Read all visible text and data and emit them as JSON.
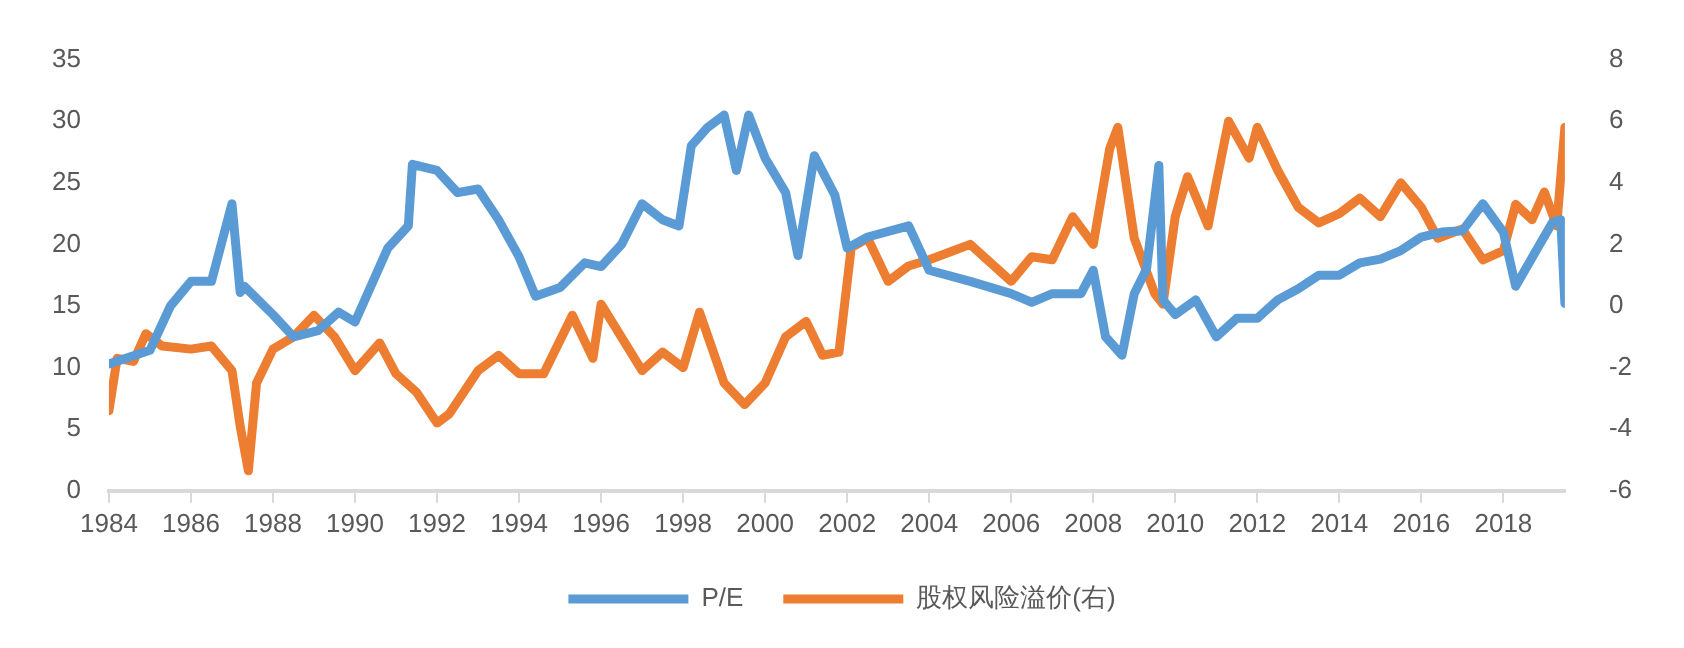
{
  "chart_data": {
    "type": "line",
    "legend": "bottom",
    "grid": false,
    "marker": "none",
    "line_style": "solid",
    "xlim": [
      1984,
      2019.5
    ],
    "xticks": [
      1984,
      1986,
      1988,
      1990,
      1992,
      1994,
      1996,
      1998,
      2000,
      2002,
      2004,
      2006,
      2008,
      2010,
      2012,
      2014,
      2016,
      2018
    ],
    "ylim": [
      0,
      35
    ],
    "yticks": [
      0,
      5,
      10,
      15,
      20,
      25,
      30,
      35
    ],
    "y2lim": [
      -6,
      8
    ],
    "y2ticks": [
      -6,
      -4,
      -2,
      0,
      2,
      4,
      6,
      8
    ],
    "series": [
      {
        "name": "P/E",
        "color": "#5b9bd5",
        "x": [
          1984,
          1985,
          1985.5,
          1986,
          1986.5,
          1987,
          1987.2,
          1987.3,
          1988,
          1988.5,
          1989.1,
          1989.6,
          1990,
          1990.8,
          1991.3,
          1991.4,
          1992,
          1992.5,
          1993,
          1993.5,
          1994,
          1994.4,
          1995,
          1995.6,
          1996,
          1996.5,
          1997,
          1997.5,
          1997.9,
          1998.2,
          1998.6,
          1999,
          1999.3,
          1999.6,
          2000,
          2000.5,
          2000.8,
          2001.2,
          2001.7,
          2002,
          2002.5,
          2003.5,
          2004,
          2005,
          2006,
          2006.5,
          2007,
          2007.7,
          2008,
          2008.3,
          2008.7,
          2009,
          2009.3,
          2009.6,
          2009.7,
          2010,
          2010.5,
          2011,
          2011.5,
          2012,
          2012.5,
          2013,
          2013.5,
          2014,
          2014.5,
          2015,
          2015.5,
          2016,
          2016.5,
          2017,
          2017.5,
          2018,
          2018.3,
          2018.8,
          2019.2,
          2019.4,
          2019.5
        ],
        "values": [
          10.3,
          11.4,
          15,
          17,
          17,
          23.3,
          16.1,
          16.6,
          14.3,
          12.5,
          13,
          14.5,
          13.7,
          19.7,
          21.5,
          26.5,
          26,
          24.2,
          24.5,
          22,
          19,
          15.8,
          16.5,
          18.5,
          18.2,
          20,
          23.3,
          22,
          21.5,
          28,
          29.5,
          30.5,
          26,
          30.5,
          27,
          24.2,
          19.1,
          27.2,
          24,
          19.7,
          20.6,
          21.5,
          17.9,
          17,
          16,
          15.3,
          16,
          16,
          17.9,
          12.5,
          11,
          16,
          18,
          26.4,
          15.5,
          14.3,
          15.5,
          12.5,
          14,
          14,
          15.5,
          16.4,
          17.5,
          17.5,
          18.5,
          18.8,
          19.5,
          20.6,
          21,
          21.1,
          23.3,
          21,
          16.6,
          19.5,
          21.8,
          22,
          15.2
        ]
      },
      {
        "name": "股权风险溢价(右)",
        "color": "#ed7d31",
        "axis": "y2",
        "x": [
          1984,
          1984.2,
          1984.6,
          1984.9,
          1985.3,
          1986,
          1986.5,
          1987,
          1987.2,
          1987.4,
          1987.6,
          1988,
          1988.5,
          1989,
          1989.5,
          1990,
          1990.6,
          1991,
          1991.5,
          1992,
          1992.3,
          1993,
          1993.5,
          1994,
          1994.6,
          1995.3,
          1995.8,
          1996,
          1997,
          1997.5,
          1998,
          1998.4,
          1999,
          1999.5,
          2000,
          2000.5,
          2001,
          2001.4,
          2001.8,
          2002.1,
          2002.5,
          2003,
          2003.5,
          2004,
          2005,
          2006,
          2006.5,
          2007,
          2007.5,
          2008,
          2008.4,
          2008.6,
          2009,
          2009.5,
          2009.7,
          2010,
          2010.3,
          2010.8,
          2011,
          2011.3,
          2011.8,
          2012,
          2012.5,
          2013,
          2013.5,
          2014,
          2014.5,
          2015,
          2015.5,
          2016,
          2016.4,
          2017,
          2017.5,
          2018,
          2018.3,
          2018.7,
          2019,
          2019.3,
          2019.5
        ],
        "values": [
          -3.4,
          -1.7,
          -1.8,
          -0.9,
          -1.3,
          -1.4,
          -1.3,
          -2.1,
          -3.9,
          -5.35,
          -2.5,
          -1.4,
          -1,
          -0.3,
          -1,
          -2.1,
          -1.2,
          -2.2,
          -2.8,
          -3.8,
          -3.5,
          -2.1,
          -1.6,
          -2.2,
          -2.2,
          -0.3,
          -1.7,
          0.06,
          -2.1,
          -1.5,
          -2,
          -0.2,
          -2.5,
          -3.2,
          -2.5,
          -1,
          -0.5,
          -1.6,
          -1.5,
          1.9,
          2.2,
          0.8,
          1.3,
          1.5,
          2,
          0.8,
          1.6,
          1.5,
          2.9,
          2,
          5.1,
          5.8,
          2.2,
          0.4,
          0.06,
          2.9,
          4.2,
          2.6,
          4,
          6,
          4.8,
          5.8,
          4.4,
          3.2,
          2.7,
          3,
          3.5,
          2.9,
          4,
          3.2,
          2.2,
          2.5,
          1.5,
          1.8,
          3.3,
          2.8,
          3.7,
          2.6,
          5.8
        ]
      }
    ]
  }
}
